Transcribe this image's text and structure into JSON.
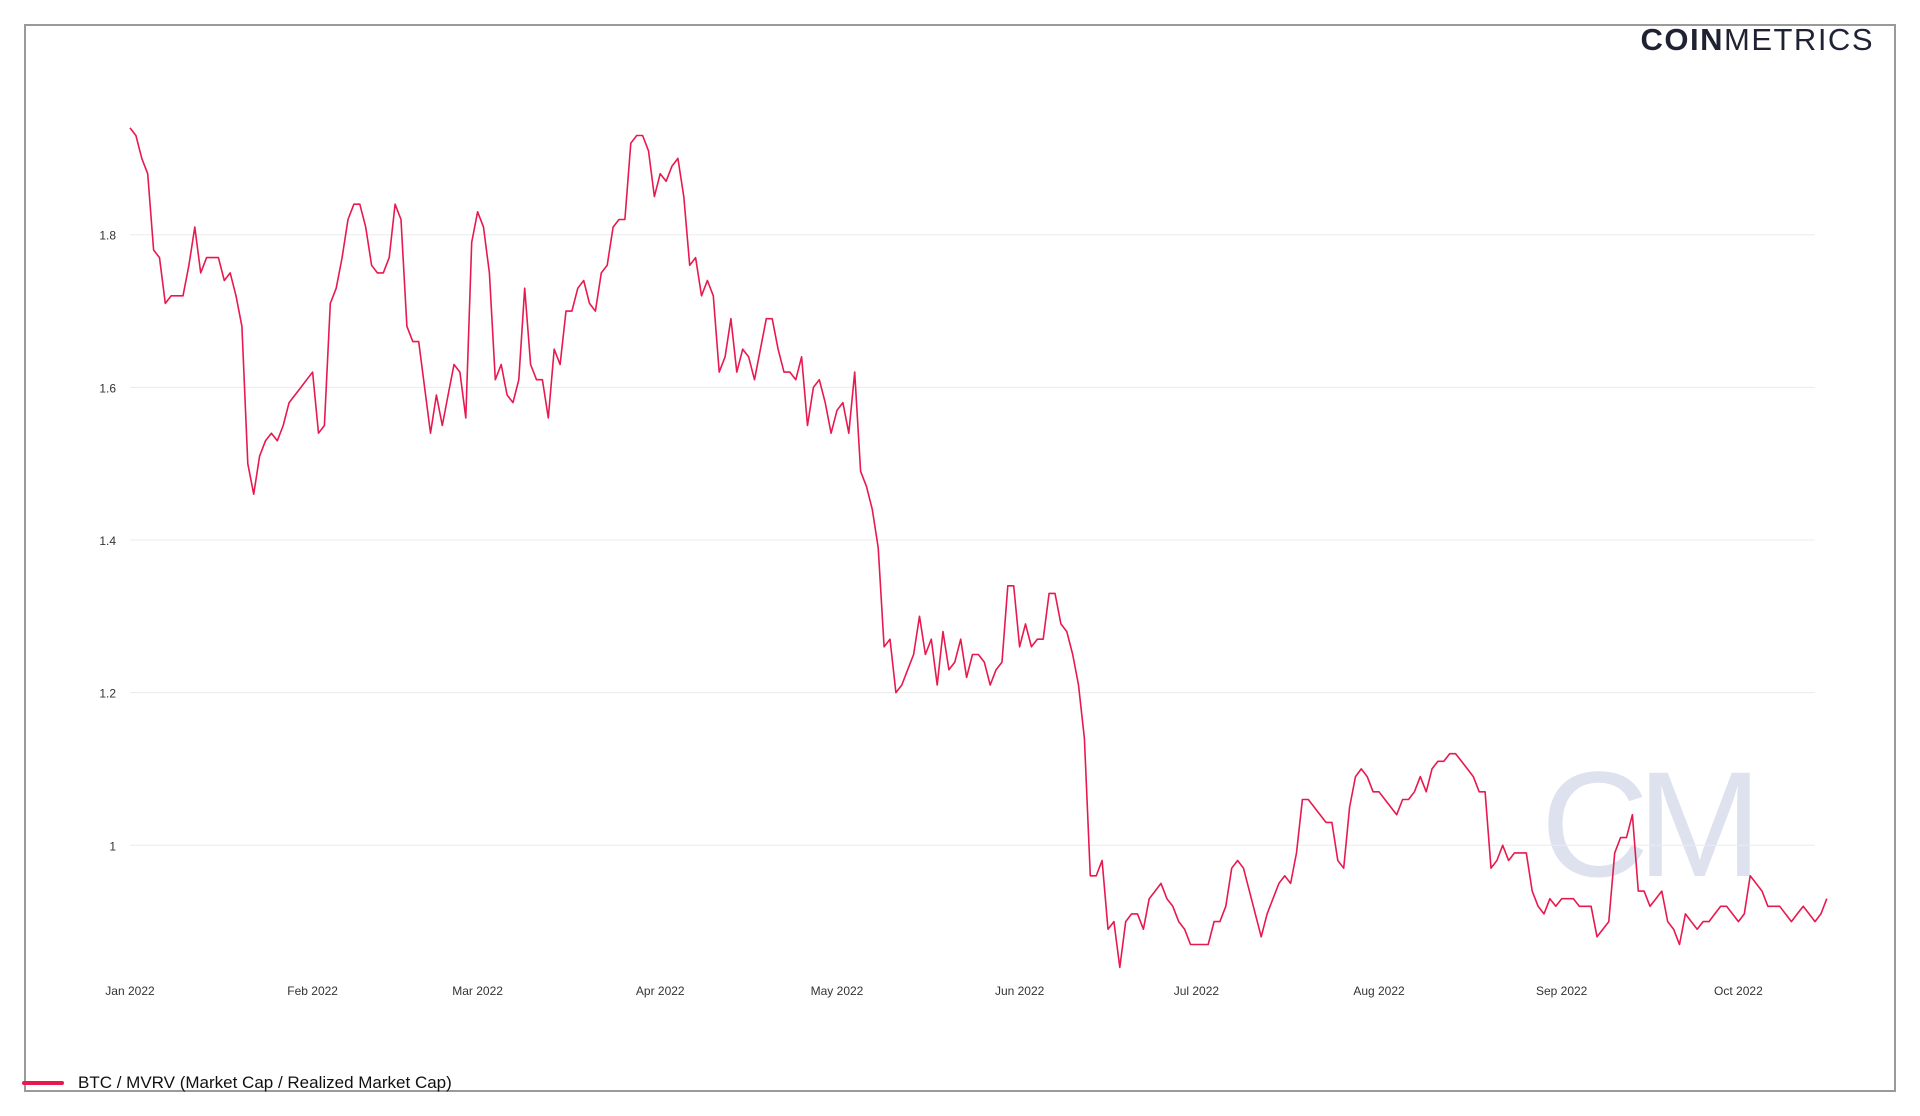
{
  "logo": {
    "bold": "COIN",
    "light": "METRICS"
  },
  "watermark": "CM",
  "chart_data": {
    "type": "line",
    "title": "",
    "xlabel": "",
    "ylabel": "",
    "ylim": [
      0.83,
      1.97
    ],
    "y_ticks": [
      {
        "value": 1.8,
        "label": "1.8"
      },
      {
        "value": 1.6,
        "label": "1.6"
      },
      {
        "value": 1.4,
        "label": "1.4"
      },
      {
        "value": 1.2,
        "label": "1.2"
      },
      {
        "value": 1.0,
        "label": "1"
      }
    ],
    "x_ticks": [
      {
        "day": 0,
        "label": "Jan 2022"
      },
      {
        "day": 31,
        "label": "Feb 2022"
      },
      {
        "day": 59,
        "label": "Mar 2022"
      },
      {
        "day": 90,
        "label": "Apr 2022"
      },
      {
        "day": 120,
        "label": "May 2022"
      },
      {
        "day": 151,
        "label": "Jun 2022"
      },
      {
        "day": 181,
        "label": "Jul 2022"
      },
      {
        "day": 212,
        "label": "Aug 2022"
      },
      {
        "day": 243,
        "label": "Sep 2022"
      },
      {
        "day": 273,
        "label": "Oct 2022"
      }
    ],
    "grid": true,
    "legend_position": "bottom-left",
    "colors": {
      "series": "#e8194f",
      "grid": "#ececec",
      "axis_text": "#333333"
    },
    "series": [
      {
        "name": "BTC / MVRV (Market Cap / Realized Market Cap)",
        "x_dates_from": "2022-01-01",
        "values": [
          1.94,
          1.93,
          1.9,
          1.88,
          1.78,
          1.77,
          1.71,
          1.72,
          1.72,
          1.72,
          1.76,
          1.81,
          1.75,
          1.77,
          1.77,
          1.77,
          1.74,
          1.75,
          1.72,
          1.68,
          1.5,
          1.46,
          1.51,
          1.53,
          1.54,
          1.53,
          1.55,
          1.58,
          1.59,
          1.6,
          1.61,
          1.62,
          1.54,
          1.55,
          1.71,
          1.73,
          1.77,
          1.82,
          1.84,
          1.84,
          1.81,
          1.76,
          1.75,
          1.75,
          1.77,
          1.84,
          1.82,
          1.68,
          1.66,
          1.66,
          1.6,
          1.54,
          1.59,
          1.55,
          1.59,
          1.63,
          1.62,
          1.56,
          1.79,
          1.83,
          1.81,
          1.75,
          1.61,
          1.63,
          1.59,
          1.58,
          1.61,
          1.73,
          1.63,
          1.61,
          1.61,
          1.56,
          1.65,
          1.63,
          1.7,
          1.7,
          1.73,
          1.74,
          1.71,
          1.7,
          1.75,
          1.76,
          1.81,
          1.82,
          1.82,
          1.92,
          1.93,
          1.93,
          1.91,
          1.85,
          1.88,
          1.87,
          1.89,
          1.9,
          1.85,
          1.76,
          1.77,
          1.72,
          1.74,
          1.72,
          1.62,
          1.64,
          1.69,
          1.62,
          1.65,
          1.64,
          1.61,
          1.65,
          1.69,
          1.69,
          1.65,
          1.62,
          1.62,
          1.61,
          1.64,
          1.55,
          1.6,
          1.61,
          1.58,
          1.54,
          1.57,
          1.58,
          1.54,
          1.62,
          1.49,
          1.47,
          1.44,
          1.39,
          1.26,
          1.27,
          1.2,
          1.21,
          1.23,
          1.25,
          1.3,
          1.25,
          1.27,
          1.21,
          1.28,
          1.23,
          1.24,
          1.27,
          1.22,
          1.25,
          1.25,
          1.24,
          1.21,
          1.23,
          1.24,
          1.34,
          1.34,
          1.26,
          1.29,
          1.26,
          1.27,
          1.27,
          1.33,
          1.33,
          1.29,
          1.28,
          1.25,
          1.21,
          1.14,
          0.96,
          0.96,
          0.98,
          0.89,
          0.9,
          0.84,
          0.9,
          0.91,
          0.91,
          0.89,
          0.93,
          0.94,
          0.95,
          0.93,
          0.92,
          0.9,
          0.89,
          0.87,
          0.87,
          0.87,
          0.87,
          0.9,
          0.9,
          0.92,
          0.97,
          0.98,
          0.97,
          0.94,
          0.91,
          0.88,
          0.91,
          0.93,
          0.95,
          0.96,
          0.95,
          0.99,
          1.06,
          1.06,
          1.05,
          1.04,
          1.03,
          1.03,
          0.98,
          0.97,
          1.05,
          1.09,
          1.1,
          1.09,
          1.07,
          1.07,
          1.06,
          1.05,
          1.04,
          1.06,
          1.06,
          1.07,
          1.09,
          1.07,
          1.1,
          1.11,
          1.11,
          1.12,
          1.12,
          1.11,
          1.1,
          1.09,
          1.07,
          1.07,
          0.97,
          0.98,
          1.0,
          0.98,
          0.99,
          0.99,
          0.99,
          0.94,
          0.92,
          0.91,
          0.93,
          0.92,
          0.93,
          0.93,
          0.93,
          0.92,
          0.92,
          0.92,
          0.88,
          0.89,
          0.9,
          0.99,
          1.01,
          1.01,
          1.04,
          0.94,
          0.94,
          0.92,
          0.93,
          0.94,
          0.9,
          0.89,
          0.87,
          0.91,
          0.9,
          0.89,
          0.9,
          0.9,
          0.91,
          0.92,
          0.92,
          0.91,
          0.9,
          0.91,
          0.96,
          0.95,
          0.94,
          0.92,
          0.92,
          0.92,
          0.91,
          0.9,
          0.91,
          0.92,
          0.91,
          0.9,
          0.91,
          0.93
        ]
      }
    ]
  }
}
